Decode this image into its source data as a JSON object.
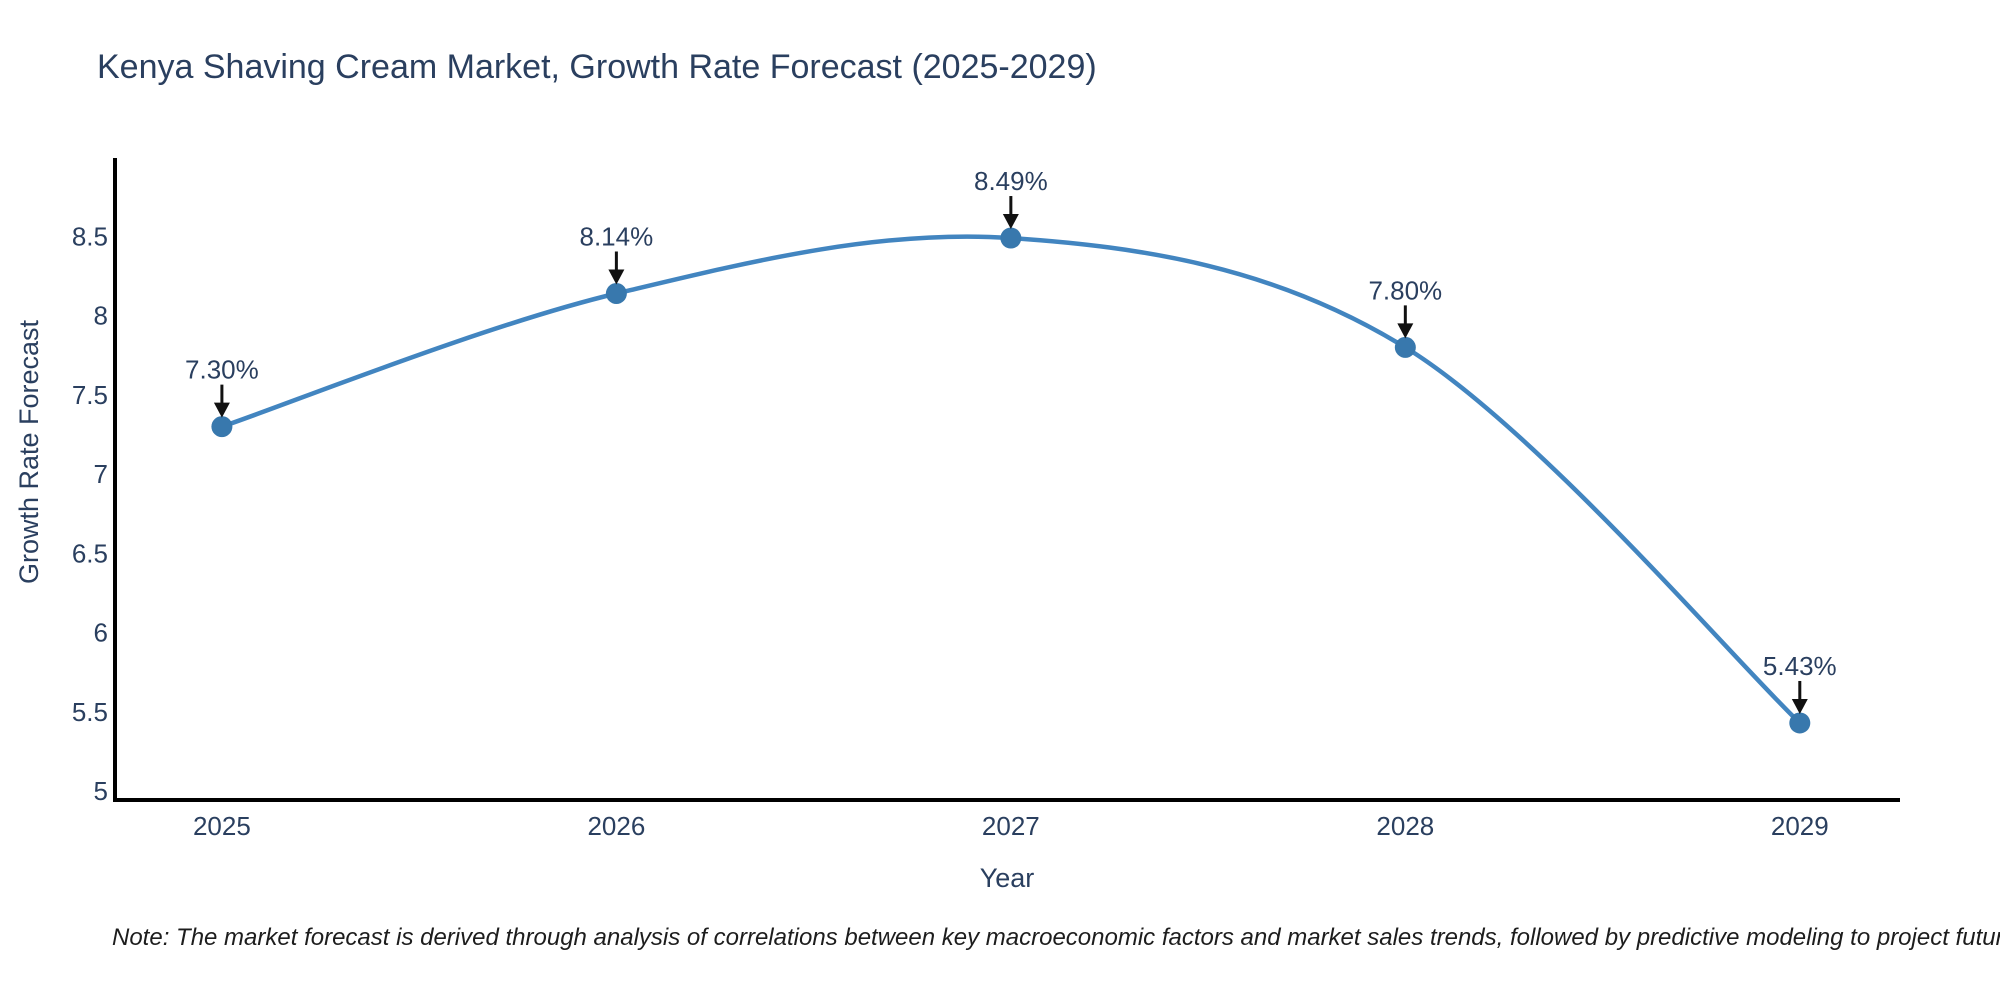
{
  "chart_data": {
    "type": "line",
    "title": "Kenya Shaving Cream Market, Growth Rate Forecast (2025-2029)",
    "xlabel": "Year",
    "ylabel": "Growth Rate Forecast",
    "x": [
      2025,
      2026,
      2027,
      2028,
      2029
    ],
    "xtick_labels": [
      "2025",
      "2026",
      "2027",
      "2028",
      "2029"
    ],
    "series": [
      {
        "name": "Growth Rate Forecast",
        "values": [
          7.3,
          8.14,
          8.49,
          7.8,
          5.43
        ],
        "point_labels": [
          "7.30%",
          "8.14%",
          "8.49%",
          "7.80%",
          "5.43%"
        ]
      }
    ],
    "yticks": [
      5,
      5.5,
      6,
      6.5,
      7,
      7.5,
      8,
      8.5
    ],
    "ytick_labels": [
      "5",
      "5.5",
      "6",
      "6.5",
      "7",
      "7.5",
      "8",
      "8.5"
    ],
    "xlim": [
      2024.729,
      2029.254
    ],
    "ylim": [
      4.944,
      8.995
    ],
    "line_shape": "spline",
    "grid": false,
    "legend": "none",
    "note": "Note: The market forecast is derived through analysis of correlations between key macroeconomic factors and market sales trends, followed by predictive modeling to project future sales",
    "colors": {
      "line": "#4285c0",
      "marker": "#3878ad",
      "axis": "#000000",
      "text": "#2a3f5f",
      "arrow": "#111111",
      "background": "#ffffff"
    }
  }
}
